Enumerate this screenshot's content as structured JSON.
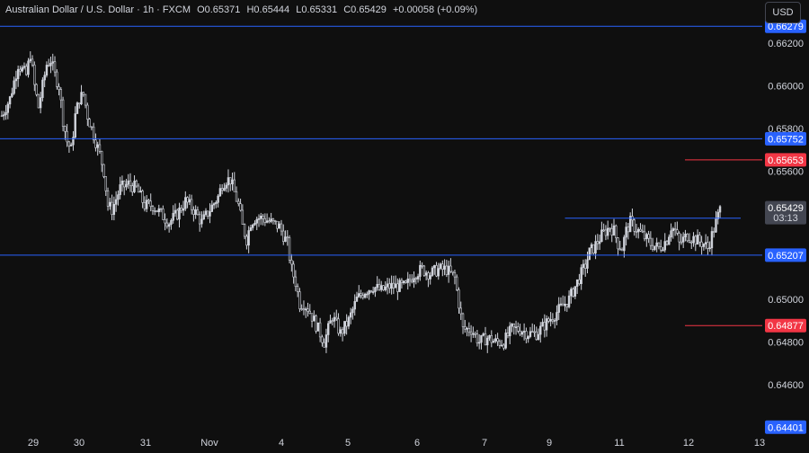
{
  "header": {
    "symbol": "Australian Dollar / U.S. Dollar · 1h · FXCM",
    "o_label": "O",
    "o_value": "0.65371",
    "h_label": "H",
    "h_value": "0.65444",
    "l_label": "L",
    "l_value": "0.65331",
    "c_label": "C",
    "c_value": "0.65429",
    "change": "+0.00058 (+0.09%)"
  },
  "currency_button": "USD",
  "colors": {
    "background": "#0f0f0f",
    "candle": "#d1d4dc",
    "blue_line": "#2962ff",
    "blue_badge": "#2962ff",
    "red_line": "#f23645",
    "red_badge": "#f23645",
    "price_badge": "#434651"
  },
  "chart_data": {
    "type": "candlestick",
    "y_ticks": [
      "0.66200",
      "0.66000",
      "0.65800",
      "0.65600",
      "0.65000",
      "0.64800",
      "0.64600"
    ],
    "ylim": [
      0.6435,
      0.6638
    ],
    "x_ticks": [
      "29",
      "30",
      "31",
      "Nov",
      "4",
      "5",
      "6",
      "7",
      "9",
      "11",
      "12",
      "13"
    ],
    "horizontal_levels": [
      {
        "label": "0.66279",
        "value": 0.66279,
        "color": "blue"
      },
      {
        "label": "0.65752",
        "value": 0.65752,
        "color": "blue"
      },
      {
        "label": "0.65207",
        "value": 0.65207,
        "color": "blue"
      },
      {
        "label": "0.64401",
        "value": 0.64401,
        "color": "blue"
      }
    ],
    "alert_levels": [
      {
        "label": "0.65653",
        "value": 0.65653,
        "color": "red"
      },
      {
        "label": "0.64877",
        "value": 0.64877,
        "color": "red"
      }
    ],
    "resistance_line": {
      "value": 0.6538,
      "from_index": 138,
      "to_index": 177
    },
    "last_price": {
      "label": "0.65429",
      "countdown": "03:13"
    },
    "close_path": [
      [
        0,
        0.6586
      ],
      [
        4,
        0.6594
      ],
      [
        8,
        0.661
      ],
      [
        12,
        0.6605
      ],
      [
        14,
        0.6615
      ],
      [
        16,
        0.66
      ],
      [
        18,
        0.659
      ],
      [
        20,
        0.66
      ],
      [
        22,
        0.661
      ],
      [
        24,
        0.6612
      ],
      [
        26,
        0.6605
      ],
      [
        28,
        0.66
      ],
      [
        30,
        0.6584
      ],
      [
        32,
        0.6574
      ],
      [
        34,
        0.657
      ],
      [
        36,
        0.6586
      ],
      [
        38,
        0.6594
      ],
      [
        40,
        0.6596
      ],
      [
        42,
        0.6586
      ],
      [
        44,
        0.658
      ],
      [
        46,
        0.6574
      ],
      [
        48,
        0.6568
      ],
      [
        50,
        0.656
      ],
      [
        52,
        0.6544
      ],
      [
        54,
        0.6542
      ],
      [
        58,
        0.6552
      ],
      [
        62,
        0.6554
      ],
      [
        66,
        0.6552
      ],
      [
        70,
        0.6544
      ],
      [
        74,
        0.6544
      ],
      [
        78,
        0.654
      ],
      [
        82,
        0.6536
      ],
      [
        86,
        0.654
      ],
      [
        90,
        0.6546
      ],
      [
        94,
        0.6542
      ],
      [
        98,
        0.6536
      ],
      [
        102,
        0.6542
      ],
      [
        106,
        0.6548
      ],
      [
        108,
        0.6554
      ],
      [
        110,
        0.6556
      ],
      [
        112,
        0.6556
      ],
      [
        114,
        0.655
      ],
      [
        116,
        0.6544
      ],
      [
        118,
        0.6534
      ],
      [
        120,
        0.6528
      ],
      [
        122,
        0.6536
      ],
      [
        124,
        0.6538
      ],
      [
        128,
        0.6538
      ],
      [
        132,
        0.6536
      ],
      [
        136,
        0.6534
      ],
      [
        140,
        0.6526
      ],
      [
        142,
        0.6514
      ],
      [
        144,
        0.6508
      ],
      [
        146,
        0.6498
      ],
      [
        148,
        0.6498
      ],
      [
        150,
        0.6496
      ],
      [
        152,
        0.6492
      ],
      [
        154,
        0.6488
      ],
      [
        156,
        0.6484
      ],
      [
        158,
        0.648
      ],
      [
        160,
        0.6486
      ],
      [
        162,
        0.6492
      ],
      [
        164,
        0.6488
      ],
      [
        166,
        0.6484
      ],
      [
        170,
        0.649
      ],
      [
        174,
        0.65
      ],
      [
        178,
        0.6504
      ],
      [
        182,
        0.6506
      ],
      [
        186,
        0.6504
      ],
      [
        190,
        0.6506
      ],
      [
        194,
        0.6506
      ],
      [
        198,
        0.6506
      ],
      [
        202,
        0.6512
      ],
      [
        206,
        0.6514
      ],
      [
        210,
        0.6512
      ],
      [
        214,
        0.6514
      ],
      [
        218,
        0.6514
      ],
      [
        222,
        0.651
      ],
      [
        224,
        0.6498
      ],
      [
        226,
        0.6486
      ],
      [
        230,
        0.6486
      ],
      [
        234,
        0.648
      ],
      [
        238,
        0.6482
      ],
      [
        242,
        0.648
      ],
      [
        246,
        0.648
      ],
      [
        250,
        0.6486
      ],
      [
        254,
        0.6486
      ],
      [
        258,
        0.6484
      ],
      [
        262,
        0.6484
      ],
      [
        266,
        0.6488
      ],
      [
        270,
        0.6492
      ],
      [
        274,
        0.6496
      ],
      [
        278,
        0.65
      ],
      [
        282,
        0.6508
      ],
      [
        286,
        0.6516
      ],
      [
        288,
        0.6522
      ],
      [
        290,
        0.6524
      ],
      [
        294,
        0.653
      ],
      [
        298,
        0.6534
      ],
      [
        300,
        0.6532
      ],
      [
        302,
        0.6526
      ],
      [
        304,
        0.6524
      ],
      [
        306,
        0.6532
      ],
      [
        308,
        0.6536
      ],
      [
        310,
        0.6534
      ],
      [
        314,
        0.653
      ],
      [
        318,
        0.6526
      ],
      [
        322,
        0.6524
      ],
      [
        326,
        0.6528
      ],
      [
        328,
        0.6534
      ],
      [
        330,
        0.6532
      ],
      [
        332,
        0.6526
      ],
      [
        334,
        0.6528
      ],
      [
        336,
        0.653
      ],
      [
        340,
        0.6528
      ],
      [
        344,
        0.6526
      ],
      [
        346,
        0.6524
      ],
      [
        348,
        0.653
      ],
      [
        350,
        0.6536
      ],
      [
        352,
        0.6542
      ]
    ]
  }
}
